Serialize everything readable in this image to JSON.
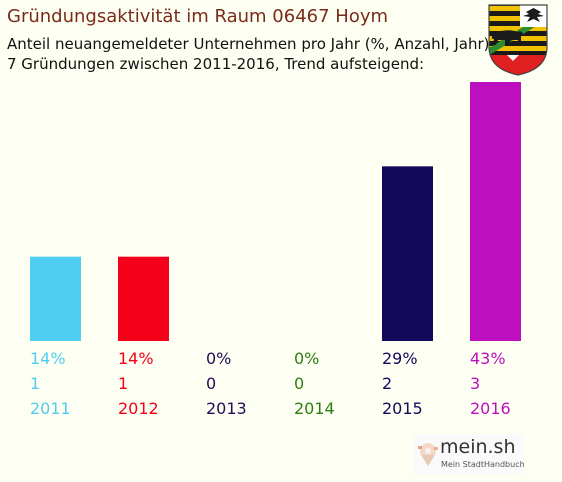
{
  "header": {
    "title": "Gründungsaktivität im Raum 06467 Hoym",
    "subtitle_line1": "Anteil neuangemeldeter Unternehmen pro Jahr (%, Anzahl, Jahr)",
    "subtitle_line2": "7 Gründungen zwischen 2011-2016, Trend aufsteigend:"
  },
  "brand": {
    "name": "mein.sh",
    "tagline": "Mein StadtHandbuch"
  },
  "colors": {
    "background": "#fefff3",
    "title": "#7a2b1a",
    "crest_gold": "#f2c200",
    "crest_black": "#1a1a1a",
    "crest_red": "#e02020",
    "crest_green": "#2e8b2e"
  },
  "chart_data": {
    "type": "bar",
    "categories": [
      "2011",
      "2012",
      "2013",
      "2014",
      "2015",
      "2016"
    ],
    "values": [
      14,
      14,
      0,
      0,
      29,
      43
    ],
    "counts": [
      1,
      1,
      0,
      0,
      2,
      3
    ],
    "percent_labels": [
      "14%",
      "14%",
      "0%",
      "0%",
      "29%",
      "43%"
    ],
    "colors": [
      "#4fcdf2",
      "#f5001a",
      "#270b5a",
      "#2e7d10",
      "#13095a",
      "#bd0fbf"
    ],
    "ylim": [
      0,
      43
    ],
    "grid": false,
    "legend": "none"
  }
}
